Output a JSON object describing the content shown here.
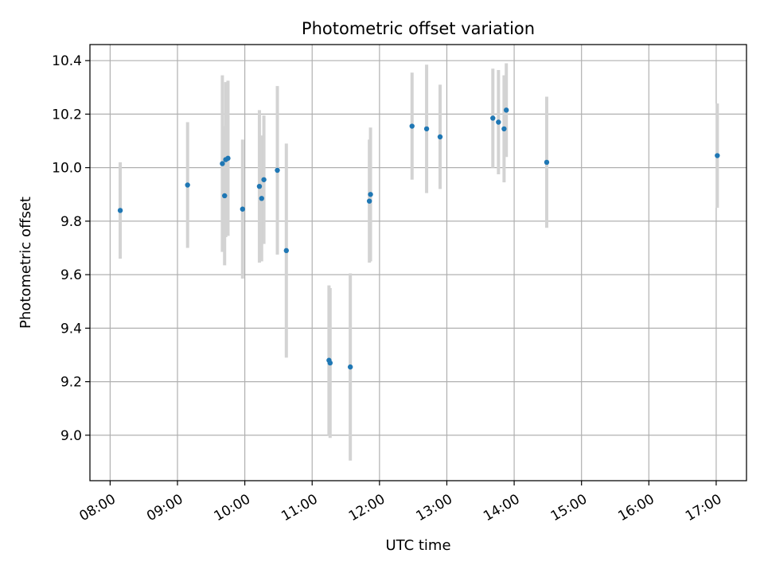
{
  "chart_data": {
    "type": "scatter",
    "title": "Photometric offset variation",
    "xlabel": "UTC time",
    "ylabel": "Photometric offset",
    "x_ticks": [
      "08:00",
      "09:00",
      "10:00",
      "11:00",
      "12:00",
      "13:00",
      "14:00",
      "15:00",
      "16:00",
      "17:00"
    ],
    "y_ticks": [
      "9.0",
      "9.2",
      "9.4",
      "9.6",
      "9.8",
      "10.0",
      "10.2",
      "10.4"
    ],
    "xlim": [
      "07:42",
      "17:27"
    ],
    "ylim": [
      8.83,
      10.46
    ],
    "grid": true,
    "colors": {
      "point": "#1f77b4",
      "errorbar": "#d3d3d3",
      "grid": "#b0b0b0"
    },
    "points": [
      {
        "x": "08:09",
        "y": 9.84,
        "err": 0.18
      },
      {
        "x": "09:09",
        "y": 9.935,
        "err": 0.235
      },
      {
        "x": "09:40",
        "y": 10.015,
        "err": 0.33
      },
      {
        "x": "09:42",
        "y": 9.895,
        "err": 0.26
      },
      {
        "x": "09:43",
        "y": 10.03,
        "err": 0.29
      },
      {
        "x": "09:45",
        "y": 10.035,
        "err": 0.29
      },
      {
        "x": "09:58",
        "y": 9.845,
        "err": 0.26
      },
      {
        "x": "10:13",
        "y": 9.93,
        "err": 0.285
      },
      {
        "x": "10:15",
        "y": 9.885,
        "err": 0.235
      },
      {
        "x": "10:17",
        "y": 9.955,
        "err": 0.24
      },
      {
        "x": "10:29",
        "y": 9.99,
        "err": 0.315
      },
      {
        "x": "10:37",
        "y": 9.69,
        "err": 0.4
      },
      {
        "x": "11:15",
        "y": 9.28,
        "err": 0.28
      },
      {
        "x": "11:16",
        "y": 9.27,
        "err": 0.28
      },
      {
        "x": "11:34",
        "y": 9.255,
        "err": 0.35
      },
      {
        "x": "11:51",
        "y": 9.875,
        "err": 0.23
      },
      {
        "x": "11:52",
        "y": 9.9,
        "err": 0.25
      },
      {
        "x": "12:29",
        "y": 10.155,
        "err": 0.2
      },
      {
        "x": "12:42",
        "y": 10.145,
        "err": 0.24
      },
      {
        "x": "12:54",
        "y": 10.115,
        "err": 0.195
      },
      {
        "x": "13:41",
        "y": 10.185,
        "err": 0.185
      },
      {
        "x": "13:46",
        "y": 10.17,
        "err": 0.195
      },
      {
        "x": "13:51",
        "y": 10.145,
        "err": 0.2
      },
      {
        "x": "13:53",
        "y": 10.215,
        "err": 0.175
      },
      {
        "x": "14:29",
        "y": 10.02,
        "err": 0.245
      },
      {
        "x": "17:01",
        "y": 10.045,
        "err": 0.195
      }
    ]
  }
}
